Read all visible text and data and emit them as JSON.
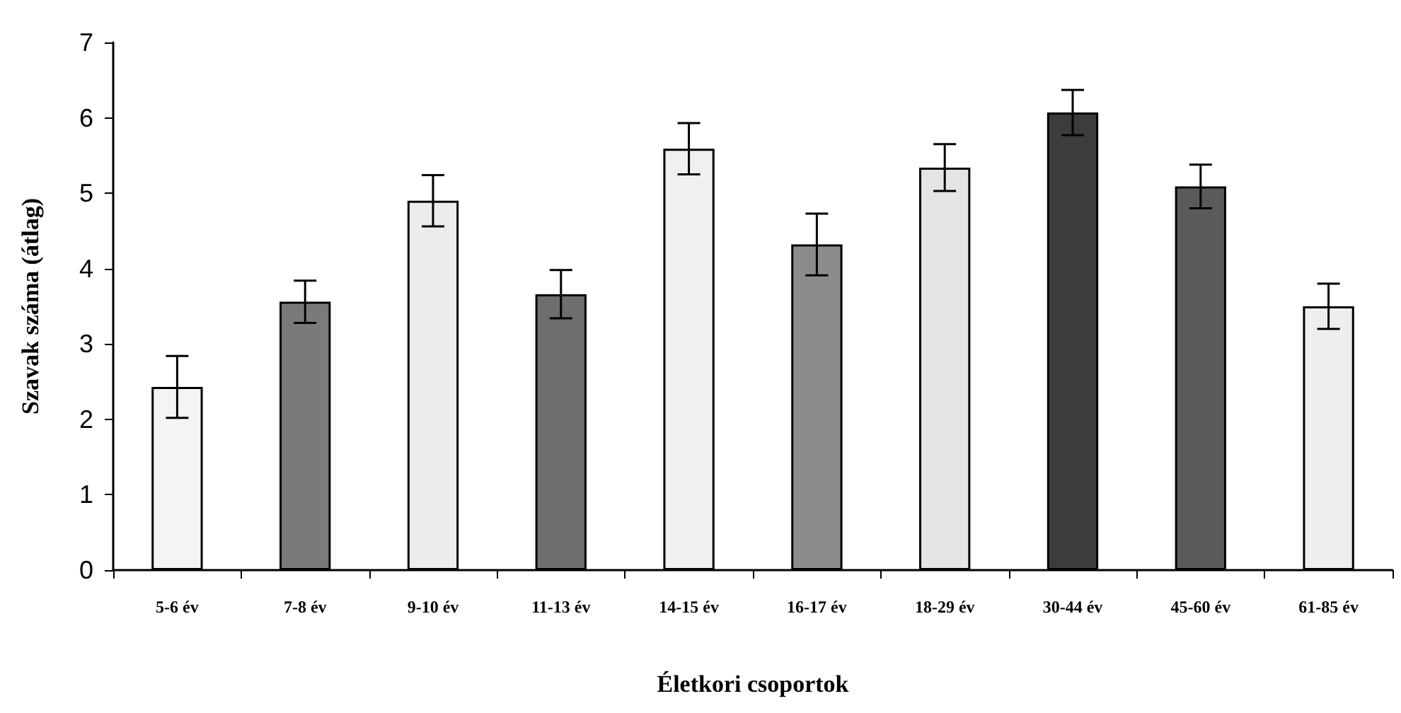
{
  "chart_data": {
    "type": "bar",
    "xlabel": "Életkori csoportok",
    "ylabel": "Szavak száma (átlag)",
    "categories": [
      "5-6 év",
      "7-8 év",
      "9-10 év",
      "11-13 év",
      "14-15 év",
      "16-17 év",
      "18-29 év",
      "30-44 év",
      "45-60 év",
      "61-85 év"
    ],
    "values": [
      2.43,
      3.56,
      4.9,
      3.66,
      5.59,
      4.32,
      5.34,
      6.07,
      5.09,
      3.5
    ],
    "colors": [
      "#f4f4f4",
      "#7a7a7a",
      "#ececec",
      "#6e6e6e",
      "#f0f0f0",
      "#8c8c8c",
      "#e4e4e4",
      "#3c3c3c",
      "#5a5a5a",
      "#eeeeee"
    ],
    "errors": [
      0.41,
      0.28,
      0.34,
      0.32,
      0.34,
      0.41,
      0.31,
      0.3,
      0.29,
      0.3
    ],
    "ylim": [
      0,
      7
    ],
    "yticks": [
      0,
      1,
      2,
      3,
      4,
      5,
      6,
      7
    ],
    "grid": false
  }
}
